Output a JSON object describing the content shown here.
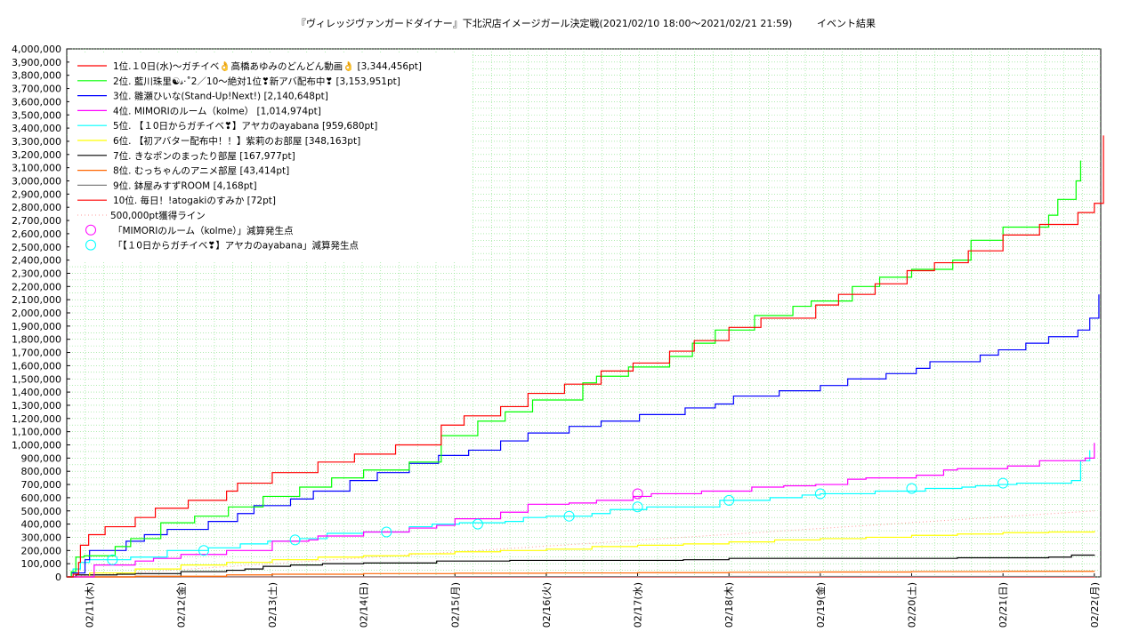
{
  "chart_data": {
    "type": "line",
    "title": "『ヴィレッジヴァンガードダイナー』下北沢店イメージガール決定戦(2021/02/10 18:00〜2021/02/21 21:59)",
    "subtitle": "イベント結果",
    "ylim": [
      0,
      4000000
    ],
    "yticks": [
      "0",
      "100,000",
      "200,000",
      "300,000",
      "400,000",
      "500,000",
      "600,000",
      "700,000",
      "800,000",
      "900,000",
      "1,000,000",
      "1,100,000",
      "1,200,000",
      "1,300,000",
      "1,400,000",
      "1,500,000",
      "1,600,000",
      "1,700,000",
      "1,800,000",
      "1,900,000",
      "2,000,000",
      "2,100,000",
      "2,200,000",
      "2,300,000",
      "2,400,000",
      "2,500,000",
      "2,600,000",
      "2,700,000",
      "2,800,000",
      "2,900,000",
      "3,000,000",
      "3,100,000",
      "3,200,000",
      "3,300,000",
      "3,400,000",
      "3,500,000",
      "3,600,000",
      "3,700,000",
      "3,800,000",
      "3,900,000",
      "4,000,000"
    ],
    "xlim_days_from_0210": [
      0.75,
      12.0
    ],
    "xticks": [
      "02/11(木)",
      "02/12(金)",
      "02/13(土)",
      "02/14(日)",
      "02/15(月)",
      "02/16(火)",
      "02/17(水)",
      "02/18(木)",
      "02/19(金)",
      "02/20(土)",
      "02/21(日)",
      "02/22(月)"
    ],
    "grid": true,
    "legend_position": "top-left",
    "series": [
      {
        "name": "1位.１0日(水)〜ガチイベ👌高橋あゆみのどんどん動画👌 [3,344,456pt]",
        "color": "#ff0000",
        "points": [
          [
            0.75,
            0
          ],
          [
            0.82,
            20000
          ],
          [
            0.88,
            110000
          ],
          [
            0.9,
            240000
          ],
          [
            0.99,
            320000
          ],
          [
            1.17,
            380000
          ],
          [
            1.5,
            450000
          ],
          [
            1.72,
            520000
          ],
          [
            2.08,
            580000
          ],
          [
            2.5,
            650000
          ],
          [
            2.62,
            710000
          ],
          [
            3.0,
            790000
          ],
          [
            3.5,
            870000
          ],
          [
            3.9,
            930000
          ],
          [
            4.35,
            1000000
          ],
          [
            4.85,
            1150000
          ],
          [
            5.1,
            1220000
          ],
          [
            5.5,
            1290000
          ],
          [
            5.8,
            1390000
          ],
          [
            6.2,
            1460000
          ],
          [
            6.6,
            1560000
          ],
          [
            6.95,
            1620000
          ],
          [
            7.35,
            1710000
          ],
          [
            7.62,
            1790000
          ],
          [
            8.0,
            1890000
          ],
          [
            8.35,
            1960000
          ],
          [
            8.95,
            2060000
          ],
          [
            9.2,
            2140000
          ],
          [
            9.6,
            2220000
          ],
          [
            9.95,
            2320000
          ],
          [
            10.25,
            2380000
          ],
          [
            10.62,
            2470000
          ],
          [
            11.0,
            2590000
          ],
          [
            11.4,
            2670000
          ],
          [
            11.82,
            2760000
          ],
          [
            12.0,
            2830000
          ],
          [
            12.1,
            3344456
          ]
        ]
      },
      {
        "name": "2位. 藍川珠里☯𝓈·˚2／10〜絶対1位❣新アバ配布中❣ [3,153,951pt]",
        "color": "#00ff00",
        "points": [
          [
            0.75,
            0
          ],
          [
            0.8,
            40000
          ],
          [
            0.85,
            150000
          ],
          [
            0.94,
            160000
          ],
          [
            1.28,
            230000
          ],
          [
            1.45,
            290000
          ],
          [
            1.78,
            410000
          ],
          [
            2.15,
            460000
          ],
          [
            2.52,
            530000
          ],
          [
            2.9,
            610000
          ],
          [
            3.3,
            680000
          ],
          [
            3.65,
            750000
          ],
          [
            4.0,
            810000
          ],
          [
            4.5,
            870000
          ],
          [
            4.85,
            1070000
          ],
          [
            5.25,
            1180000
          ],
          [
            5.55,
            1250000
          ],
          [
            5.85,
            1340000
          ],
          [
            6.4,
            1470000
          ],
          [
            6.55,
            1520000
          ],
          [
            6.9,
            1590000
          ],
          [
            7.35,
            1670000
          ],
          [
            7.6,
            1770000
          ],
          [
            7.85,
            1870000
          ],
          [
            8.28,
            1980000
          ],
          [
            8.7,
            2050000
          ],
          [
            8.9,
            2090000
          ],
          [
            9.35,
            2200000
          ],
          [
            9.65,
            2270000
          ],
          [
            10.0,
            2330000
          ],
          [
            10.45,
            2400000
          ],
          [
            10.65,
            2550000
          ],
          [
            11.0,
            2650000
          ],
          [
            11.5,
            2740000
          ],
          [
            11.6,
            2860000
          ],
          [
            11.8,
            3000000
          ],
          [
            11.85,
            3154000
          ]
        ]
      },
      {
        "name": "3位. 雛瀬ひいな(Stand-Up!Next!) [2,140,648pt]",
        "color": "#0000ff",
        "points": [
          [
            0.75,
            0
          ],
          [
            0.8,
            30000
          ],
          [
            0.95,
            130000
          ],
          [
            1.0,
            200000
          ],
          [
            1.4,
            270000
          ],
          [
            1.6,
            320000
          ],
          [
            1.85,
            360000
          ],
          [
            2.3,
            420000
          ],
          [
            2.62,
            480000
          ],
          [
            2.8,
            540000
          ],
          [
            3.2,
            590000
          ],
          [
            3.45,
            650000
          ],
          [
            3.85,
            730000
          ],
          [
            4.15,
            790000
          ],
          [
            4.5,
            860000
          ],
          [
            4.82,
            920000
          ],
          [
            5.15,
            960000
          ],
          [
            5.5,
            1030000
          ],
          [
            5.8,
            1090000
          ],
          [
            6.25,
            1140000
          ],
          [
            6.6,
            1180000
          ],
          [
            7.02,
            1230000
          ],
          [
            7.52,
            1280000
          ],
          [
            7.85,
            1310000
          ],
          [
            8.05,
            1370000
          ],
          [
            8.55,
            1410000
          ],
          [
            9.0,
            1450000
          ],
          [
            9.3,
            1500000
          ],
          [
            9.72,
            1540000
          ],
          [
            10.05,
            1580000
          ],
          [
            10.2,
            1630000
          ],
          [
            10.75,
            1680000
          ],
          [
            10.95,
            1720000
          ],
          [
            11.25,
            1770000
          ],
          [
            11.5,
            1820000
          ],
          [
            11.82,
            1870000
          ],
          [
            11.95,
            1960000
          ],
          [
            12.05,
            2140000
          ]
        ]
      },
      {
        "name": "4位. MIMORIのルーム（kolme） [1,014,974pt]",
        "color": "#ff00ff",
        "points": [
          [
            0.75,
            0
          ],
          [
            1.05,
            90000
          ],
          [
            1.5,
            120000
          ],
          [
            1.7,
            140000
          ],
          [
            2.0,
            170000
          ],
          [
            2.5,
            200000
          ],
          [
            3.0,
            270000
          ],
          [
            3.4,
            280000
          ],
          [
            3.5,
            310000
          ],
          [
            4.0,
            340000
          ],
          [
            4.5,
            370000
          ],
          [
            4.8,
            390000
          ],
          [
            5.0,
            440000
          ],
          [
            5.5,
            490000
          ],
          [
            5.8,
            550000
          ],
          [
            6.25,
            560000
          ],
          [
            6.55,
            580000
          ],
          [
            6.95,
            610000
          ],
          [
            7.15,
            630000
          ],
          [
            7.7,
            650000
          ],
          [
            8.25,
            680000
          ],
          [
            8.6,
            690000
          ],
          [
            8.95,
            700000
          ],
          [
            9.3,
            740000
          ],
          [
            9.5,
            750000
          ],
          [
            10.05,
            770000
          ],
          [
            10.35,
            810000
          ],
          [
            10.5,
            820000
          ],
          [
            11.05,
            840000
          ],
          [
            11.4,
            880000
          ],
          [
            11.75,
            880000
          ],
          [
            11.9,
            900000
          ],
          [
            12.0,
            1015000
          ]
        ]
      },
      {
        "name": "5位. 【１0日からガチイベ❣】アヤカのayabana [959,680pt]",
        "color": "#00ffff",
        "points": [
          [
            0.75,
            0
          ],
          [
            0.82,
            60000
          ],
          [
            0.9,
            110000
          ],
          [
            1.0,
            130000
          ],
          [
            1.45,
            150000
          ],
          [
            1.85,
            200000
          ],
          [
            2.3,
            220000
          ],
          [
            2.65,
            250000
          ],
          [
            2.95,
            270000
          ],
          [
            3.3,
            290000
          ],
          [
            3.6,
            330000
          ],
          [
            4.0,
            340000
          ],
          [
            4.5,
            380000
          ],
          [
            4.75,
            400000
          ],
          [
            5.05,
            410000
          ],
          [
            5.55,
            420000
          ],
          [
            5.75,
            450000
          ],
          [
            6.0,
            460000
          ],
          [
            6.5,
            480000
          ],
          [
            6.7,
            510000
          ],
          [
            7.1,
            530000
          ],
          [
            7.9,
            580000
          ],
          [
            8.45,
            600000
          ],
          [
            8.8,
            620000
          ],
          [
            9.0,
            630000
          ],
          [
            9.6,
            650000
          ],
          [
            10.15,
            670000
          ],
          [
            10.55,
            680000
          ],
          [
            10.7,
            690000
          ],
          [
            10.95,
            700000
          ],
          [
            11.15,
            710000
          ],
          [
            11.75,
            730000
          ],
          [
            11.85,
            880000
          ],
          [
            11.95,
            960000
          ]
        ]
      },
      {
        "name": "6位. 【初アバター配布中！！】紫莉のお部屋 [348,163pt]",
        "color": "#ffff00",
        "points": [
          [
            0.75,
            0
          ],
          [
            1.0,
            30000
          ],
          [
            1.5,
            60000
          ],
          [
            2.0,
            90000
          ],
          [
            2.5,
            110000
          ],
          [
            3.0,
            130000
          ],
          [
            3.5,
            150000
          ],
          [
            4.0,
            160000
          ],
          [
            4.5,
            175000
          ],
          [
            5.0,
            190000
          ],
          [
            5.5,
            200000
          ],
          [
            6.0,
            210000
          ],
          [
            6.5,
            230000
          ],
          [
            7.0,
            240000
          ],
          [
            7.5,
            250000
          ],
          [
            8.0,
            265000
          ],
          [
            8.5,
            280000
          ],
          [
            9.0,
            290000
          ],
          [
            9.5,
            300000
          ],
          [
            10.0,
            315000
          ],
          [
            10.5,
            325000
          ],
          [
            11.0,
            335000
          ],
          [
            11.5,
            340000
          ],
          [
            12.0,
            348163
          ]
        ]
      },
      {
        "name": "7位. きなポンのまったり部屋 [167,977pt]",
        "color": "#000000",
        "points": [
          [
            0.75,
            0
          ],
          [
            0.85,
            15000
          ],
          [
            1.3,
            20000
          ],
          [
            1.5,
            25000
          ],
          [
            2.0,
            40000
          ],
          [
            2.5,
            50000
          ],
          [
            2.7,
            60000
          ],
          [
            2.9,
            80000
          ],
          [
            3.2,
            90000
          ],
          [
            3.55,
            100000
          ],
          [
            4.0,
            105000
          ],
          [
            4.8,
            120000
          ],
          [
            5.6,
            125000
          ],
          [
            6.5,
            125000
          ],
          [
            7.5,
            130000
          ],
          [
            8.0,
            140000
          ],
          [
            9.5,
            140000
          ],
          [
            10.5,
            145000
          ],
          [
            11.5,
            150000
          ],
          [
            11.75,
            165000
          ],
          [
            12.0,
            168000
          ]
        ]
      },
      {
        "name": "8位. むっちゃんのアニメ部屋 [43,414pt]",
        "color": "#ff6600",
        "points": [
          [
            0.75,
            0
          ],
          [
            1.5,
            5000
          ],
          [
            2.5,
            15000
          ],
          [
            3.0,
            20000
          ],
          [
            4.0,
            25000
          ],
          [
            5.0,
            28000
          ],
          [
            6.0,
            30000
          ],
          [
            7.0,
            32000
          ],
          [
            8.0,
            35000
          ],
          [
            9.0,
            37000
          ],
          [
            10.0,
            40000
          ],
          [
            11.0,
            42000
          ],
          [
            12.0,
            43414
          ]
        ]
      },
      {
        "name": "9位. 鉢屋みすずROOM [4,168pt]",
        "color": "#808080",
        "points": [
          [
            0.75,
            0
          ],
          [
            2.0,
            1000
          ],
          [
            5.0,
            2500
          ],
          [
            8.0,
            3500
          ],
          [
            12.0,
            4168
          ]
        ]
      },
      {
        "name": "10位. 毎日！!atogakiのすみか [72pt]",
        "color": "#ff0000",
        "points": [
          [
            0.75,
            0
          ],
          [
            12.0,
            72
          ]
        ]
      }
    ],
    "reference_line": {
      "name": "500,000pt獲得ライン",
      "color": "#ff9999",
      "from": [
        0.75,
        0
      ],
      "to": [
        12.0,
        500000
      ]
    },
    "markers": [
      {
        "name": "「MIMORIのルーム（kolme）」減算発生点",
        "color": "#ff00ff",
        "points": [
          [
            7.0,
            630000
          ]
        ]
      },
      {
        "name": "「【１0日からガチイベ❣】アヤカのayabana」減算発生点",
        "color": "#00ffff",
        "points": [
          [
            1.25,
            130000
          ],
          [
            2.25,
            200000
          ],
          [
            3.25,
            280000
          ],
          [
            4.25,
            340000
          ],
          [
            5.25,
            400000
          ],
          [
            6.25,
            460000
          ],
          [
            7.0,
            530000
          ],
          [
            8.0,
            580000
          ],
          [
            9.0,
            630000
          ],
          [
            10.0,
            670000
          ],
          [
            11.0,
            710000
          ]
        ]
      }
    ]
  }
}
